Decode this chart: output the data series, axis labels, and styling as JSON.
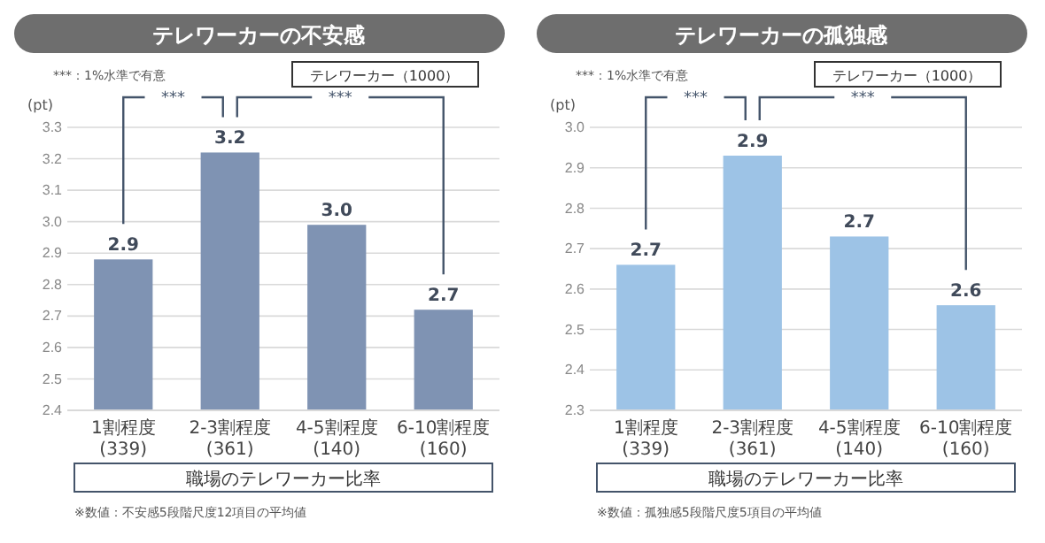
{
  "chart_data": [
    {
      "type": "bar",
      "title": "テレワーカーの不安感",
      "xlabel": "職場のテレワーカー比率",
      "ylabel": "(pt)",
      "categories": [
        "1割程度\n(339)",
        "2-3割程度\n(361)",
        "4-5割程度\n(140)",
        "6-10割程度\n(160)"
      ],
      "values": [
        2.88,
        3.22,
        2.99,
        2.72
      ],
      "value_labels": [
        "2.9",
        "3.2",
        "3.0",
        "2.7"
      ],
      "color": "#7f93b3",
      "ylim": [
        2.4,
        3.3
      ],
      "yticks": [
        2.4,
        2.5,
        2.6,
        2.7,
        2.8,
        2.9,
        {
          "value": 3,
          "label": "3.0"
        },
        3.1,
        3.2,
        3.3
      ],
      "grid": "y",
      "annotations": [
        "***：1%水準で有意",
        "テレワーカー（1000）",
        "***",
        "***",
        "※数値：不安感5段階尺度12項目の平均値"
      ]
    },
    {
      "type": "bar",
      "title": "テレワーカーの孤独感",
      "xlabel": "職場のテレワーカー比率",
      "ylabel": "(pt)",
      "categories": [
        "1割程度\n(339)",
        "2-3割程度\n(361)",
        "4-5割程度\n(140)",
        "6-10割程度\n(160)"
      ],
      "values": [
        2.66,
        2.93,
        2.73,
        2.56
      ],
      "value_labels": [
        "2.7",
        "2.9",
        "2.7",
        "2.6"
      ],
      "color": "#9dc3e6",
      "ylim": [
        2.3,
        3.0
      ],
      "yticks": [
        2.3,
        2.4,
        2.5,
        2.6,
        2.7,
        2.8,
        2.9,
        {
          "value": 3,
          "label": "3.0"
        }
      ],
      "grid": "y",
      "annotations": [
        "***：1%水準で有意",
        "テレワーカー（1000）",
        "***",
        "***",
        "※数値：孤独感5段階尺度5項目の平均値"
      ]
    }
  ]
}
